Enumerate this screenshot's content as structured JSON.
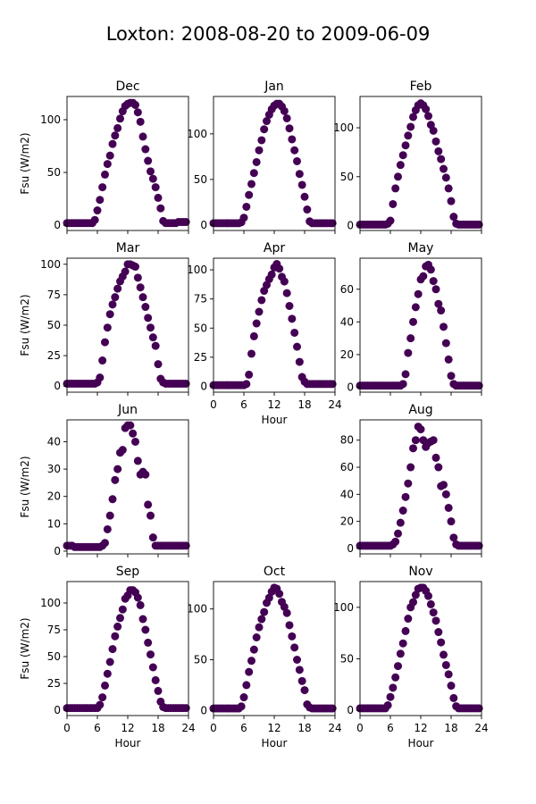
{
  "figure": {
    "title": "Loxton: 2008-08-20 to 2009-06-09",
    "marker_color": "#440154",
    "x_label": "Hour",
    "y_label": "Fsu (W/m2)",
    "x_ticks": [
      0,
      6,
      12,
      18,
      24
    ],
    "x_tick_labels": [
      "0",
      "6",
      "12",
      "18",
      "24"
    ]
  },
  "chart_data": [
    {
      "type": "scatter",
      "title": "Dec",
      "xlim": [
        0,
        24
      ],
      "ylim": [
        -5,
        122
      ],
      "yticks": [
        0,
        50,
        100
      ],
      "x": [
        0,
        0.5,
        1,
        1.5,
        2,
        2.5,
        3,
        3.5,
        4,
        4.5,
        5,
        5.5,
        6,
        6.5,
        7,
        7.5,
        8,
        8.5,
        9,
        9.5,
        10,
        10.5,
        11,
        11.5,
        12,
        12.5,
        13,
        13.5,
        14,
        14.5,
        15,
        15.5,
        16,
        16.5,
        17,
        17.5,
        18,
        18.5,
        19,
        19.5,
        20,
        20.5,
        21,
        21.5,
        22,
        22.5,
        23,
        23.5
      ],
      "y": [
        2,
        2,
        2,
        2,
        2,
        2,
        2,
        2,
        2,
        2,
        2,
        5,
        14,
        24,
        36,
        48,
        58,
        66,
        77,
        85,
        92,
        101,
        108,
        113,
        115,
        116,
        116,
        114,
        107,
        98,
        84,
        72,
        61,
        51,
        44,
        36,
        26,
        16,
        4,
        2,
        2,
        2,
        2,
        2,
        3,
        3,
        3,
        3
      ]
    },
    {
      "type": "scatter",
      "title": "Jan",
      "xlim": [
        0,
        24
      ],
      "ylim": [
        -6,
        141
      ],
      "yticks": [
        0,
        50,
        100
      ],
      "x": [
        0,
        0.5,
        1,
        1.5,
        2,
        2.5,
        3,
        3.5,
        4,
        4.5,
        5,
        5.5,
        6,
        6.5,
        7,
        7.5,
        8,
        8.5,
        9,
        9.5,
        10,
        10.5,
        11,
        11.5,
        12,
        12.5,
        13,
        13.5,
        14,
        14.5,
        15,
        15.5,
        16,
        16.5,
        17,
        17.5,
        18,
        18.5,
        19,
        19.5,
        20,
        20.5,
        21,
        21.5,
        22,
        22.5,
        23,
        23.5
      ],
      "y": [
        2,
        2,
        2,
        2,
        2,
        2,
        2,
        2,
        2,
        2,
        2,
        3,
        8,
        20,
        33,
        45,
        57,
        69,
        82,
        93,
        105,
        114,
        121,
        127,
        131,
        133,
        133,
        130,
        125,
        117,
        106,
        94,
        82,
        70,
        56,
        44,
        31,
        17,
        4,
        2,
        2,
        2,
        2,
        2,
        2,
        2,
        2,
        2
      ]
    },
    {
      "type": "scatter",
      "title": "Feb",
      "xlim": [
        0,
        24
      ],
      "ylim": [
        -5,
        132
      ],
      "yticks": [
        0,
        50,
        100
      ],
      "x": [
        0,
        0.5,
        1,
        1.5,
        2,
        2.5,
        3,
        3.5,
        4,
        4.5,
        5,
        5.5,
        6,
        6.5,
        7,
        7.5,
        8,
        8.5,
        9,
        9.5,
        10,
        10.5,
        11,
        11.5,
        12,
        12.5,
        13,
        13.5,
        14,
        14.5,
        15,
        15.5,
        16,
        16.5,
        17,
        17.5,
        18,
        18.5,
        19,
        19.5,
        20,
        20.5,
        21,
        21.5,
        22,
        22.5,
        23,
        23.5
      ],
      "y": [
        1,
        1,
        1,
        1,
        1,
        1,
        1,
        1,
        1,
        1,
        1,
        2,
        5,
        22,
        38,
        50,
        62,
        72,
        82,
        92,
        101,
        111,
        118,
        123,
        125,
        123,
        119,
        112,
        103,
        97,
        86,
        76,
        68,
        58,
        49,
        38,
        25,
        9,
        2,
        1,
        1,
        1,
        1,
        1,
        1,
        1,
        1,
        1
      ]
    },
    {
      "type": "scatter",
      "title": "Mar",
      "xlim": [
        0,
        24
      ],
      "ylim": [
        -5,
        105
      ],
      "yticks": [
        0,
        25,
        50,
        75,
        100
      ],
      "x": [
        0,
        0.5,
        1,
        1.5,
        2,
        2.5,
        3,
        3.5,
        4,
        4.5,
        5,
        5.5,
        6,
        6.5,
        7,
        7.5,
        8,
        8.5,
        9,
        9.5,
        10,
        10.5,
        11,
        11.5,
        12,
        12.5,
        13,
        13.5,
        14,
        14.5,
        15,
        15.5,
        16,
        16.5,
        17,
        17.5,
        18,
        18.5,
        19,
        19.5,
        20,
        20.5,
        21,
        21.5,
        22,
        22.5,
        23,
        23.5
      ],
      "y": [
        2,
        2,
        2,
        2,
        2,
        2,
        2,
        2,
        2,
        2,
        2,
        2,
        3,
        7,
        21,
        36,
        48,
        59,
        67,
        73,
        80,
        86,
        90,
        94,
        100,
        100,
        99,
        98,
        89,
        81,
        73,
        65,
        56,
        48,
        40,
        33,
        18,
        6,
        3,
        2,
        2,
        2,
        2,
        2,
        2,
        2,
        2,
        2
      ]
    },
    {
      "type": "scatter",
      "title": "Apr",
      "xlim": [
        0,
        24
      ],
      "ylim": [
        -5,
        110
      ],
      "yticks": [
        0,
        25,
        50,
        75,
        100
      ],
      "x": [
        0,
        0.5,
        1,
        1.5,
        2,
        2.5,
        3,
        3.5,
        4,
        4.5,
        5,
        5.5,
        6,
        6.5,
        7,
        7.5,
        8,
        8.5,
        9,
        9.5,
        10,
        10.5,
        11,
        11.5,
        12,
        12.5,
        13,
        13.5,
        14,
        14.5,
        15,
        15.5,
        16,
        16.5,
        17,
        17.5,
        18,
        18.5,
        19,
        19.5,
        20,
        20.5,
        21,
        21.5,
        22,
        22.5,
        23,
        23.5
      ],
      "y": [
        1,
        1,
        1,
        1,
        1,
        1,
        1,
        1,
        1,
        1,
        1,
        1,
        1,
        2,
        10,
        28,
        43,
        54,
        64,
        74,
        82,
        87,
        92,
        96,
        102,
        105,
        101,
        94,
        90,
        80,
        69,
        58,
        46,
        34,
        21,
        8,
        4,
        2,
        2,
        2,
        2,
        2,
        2,
        2,
        2,
        2,
        2,
        2
      ]
    },
    {
      "type": "scatter",
      "title": "May",
      "xlim": [
        0,
        24
      ],
      "ylim": [
        -3,
        79
      ],
      "yticks": [
        0,
        20,
        40,
        60
      ],
      "x": [
        0,
        0.5,
        1,
        1.5,
        2,
        2.5,
        3,
        3.5,
        4,
        4.5,
        5,
        5.5,
        6,
        6.5,
        7,
        7.5,
        8,
        8.5,
        9,
        9.5,
        10,
        10.5,
        11,
        11.5,
        12,
        12.5,
        13,
        13.5,
        14,
        14.5,
        15,
        15.5,
        16,
        16.5,
        17,
        17.5,
        18,
        18.5,
        19,
        19.5,
        20,
        20.5,
        21,
        21.5,
        22,
        22.5,
        23,
        23.5
      ],
      "y": [
        1,
        1,
        1,
        1,
        1,
        1,
        1,
        1,
        1,
        1,
        1,
        1,
        1,
        1,
        1,
        1,
        1,
        2,
        8,
        21,
        30,
        40,
        49,
        57,
        66,
        68,
        74,
        75,
        72,
        65,
        60,
        51,
        47,
        37,
        27,
        17,
        7,
        2,
        1,
        1,
        1,
        1,
        1,
        1,
        1,
        1,
        1,
        1
      ]
    },
    {
      "type": "scatter",
      "title": "Jun",
      "xlim": [
        0,
        24
      ],
      "ylim": [
        -1,
        48
      ],
      "yticks": [
        0,
        10,
        20,
        30,
        40
      ],
      "x": [
        0,
        0.5,
        1,
        1.5,
        2,
        2.5,
        3,
        3.5,
        4,
        4.5,
        5,
        5.5,
        6,
        6.5,
        7,
        7.5,
        8,
        8.5,
        9,
        9.5,
        10,
        10.5,
        11,
        11.5,
        12,
        12.5,
        13,
        13.5,
        14,
        14.5,
        15,
        15.5,
        16,
        16.5,
        17,
        17.5,
        18,
        18.5,
        19,
        19.5,
        20,
        20.5,
        21,
        21.5,
        22,
        22.5,
        23,
        23.5
      ],
      "y": [
        2,
        2,
        2,
        1.5,
        1.5,
        1.5,
        1.5,
        1.5,
        1.5,
        1.5,
        1.5,
        1.5,
        1.5,
        1.5,
        2,
        3,
        8,
        13,
        19,
        26,
        30,
        36,
        37,
        45,
        46,
        46,
        43,
        40,
        33,
        28,
        29,
        28,
        17,
        13,
        5,
        2,
        2,
        2,
        2,
        2,
        2,
        2,
        2,
        2,
        2,
        2,
        2,
        2
      ]
    },
    {
      "type": "scatter",
      "title": "Aug",
      "xlim": [
        0,
        24
      ],
      "ylim": [
        -4,
        95
      ],
      "yticks": [
        0,
        20,
        40,
        60,
        80
      ],
      "x": [
        0,
        0.5,
        1,
        1.5,
        2,
        2.5,
        3,
        3.5,
        4,
        4.5,
        5,
        5.5,
        6,
        6.5,
        7,
        7.5,
        8,
        8.5,
        9,
        9.5,
        10,
        10.5,
        11,
        11.5,
        12,
        12.5,
        13,
        13.5,
        14,
        14.5,
        15,
        15.5,
        16,
        16.5,
        17,
        17.5,
        18,
        18.5,
        19,
        19.5,
        20,
        20.5,
        21,
        21.5,
        22,
        22.5,
        23,
        23.5
      ],
      "y": [
        2,
        2,
        2,
        2,
        2,
        2,
        2,
        2,
        2,
        2,
        2,
        2,
        2,
        3,
        5,
        11,
        19,
        28,
        38,
        48,
        60,
        74,
        80,
        90,
        88,
        80,
        75,
        78,
        79,
        80,
        67,
        60,
        46,
        47,
        40,
        30,
        20,
        8,
        3,
        2,
        2,
        2,
        2,
        2,
        2,
        2,
        2,
        2
      ]
    },
    {
      "type": "scatter",
      "title": "Sep",
      "xlim": [
        0,
        24
      ],
      "ylim": [
        -5,
        120
      ],
      "yticks": [
        0,
        25,
        50,
        75,
        100
      ],
      "x": [
        0,
        0.5,
        1,
        1.5,
        2,
        2.5,
        3,
        3.5,
        4,
        4.5,
        5,
        5.5,
        6,
        6.5,
        7,
        7.5,
        8,
        8.5,
        9,
        9.5,
        10,
        10.5,
        11,
        11.5,
        12,
        12.5,
        13,
        13.5,
        14,
        14.5,
        15,
        15.5,
        16,
        16.5,
        17,
        17.5,
        18,
        18.5,
        19,
        19.5,
        20,
        20.5,
        21,
        21.5,
        22,
        22.5,
        23,
        23.5
      ],
      "y": [
        2,
        2,
        2,
        2,
        2,
        2,
        2,
        2,
        2,
        2,
        2,
        2,
        2,
        5,
        12,
        23,
        34,
        45,
        57,
        69,
        78,
        86,
        94,
        104,
        107,
        112,
        112,
        110,
        105,
        98,
        85,
        75,
        63,
        52,
        40,
        28,
        18,
        8,
        3,
        2,
        2,
        2,
        2,
        2,
        2,
        2,
        2,
        2
      ]
    },
    {
      "type": "scatter",
      "title": "Oct",
      "xlim": [
        0,
        24
      ],
      "ylim": [
        -5,
        127
      ],
      "yticks": [
        0,
        50,
        100
      ],
      "x": [
        0,
        0.5,
        1,
        1.5,
        2,
        2.5,
        3,
        3.5,
        4,
        4.5,
        5,
        5.5,
        6,
        6.5,
        7,
        7.5,
        8,
        8.5,
        9,
        9.5,
        10,
        10.5,
        11,
        11.5,
        12,
        12.5,
        13,
        13.5,
        14,
        14.5,
        15,
        15.5,
        16,
        16.5,
        17,
        17.5,
        18,
        18.5,
        19,
        19.5,
        20,
        20.5,
        21,
        21.5,
        22,
        22.5,
        23,
        23.5
      ],
      "y": [
        2,
        2,
        2,
        2,
        2,
        2,
        2,
        2,
        2,
        2,
        2,
        4,
        13,
        25,
        38,
        49,
        60,
        72,
        82,
        90,
        97,
        106,
        111,
        117,
        121,
        120,
        115,
        107,
        102,
        96,
        84,
        73,
        62,
        50,
        40,
        29,
        20,
        6,
        3,
        2,
        2,
        2,
        2,
        2,
        2,
        2,
        2,
        2
      ]
    },
    {
      "type": "scatter",
      "title": "Nov",
      "xlim": [
        0,
        24
      ],
      "ylim": [
        -5,
        125
      ],
      "yticks": [
        0,
        50,
        100
      ],
      "x": [
        0,
        0.5,
        1,
        1.5,
        2,
        2.5,
        3,
        3.5,
        4,
        4.5,
        5,
        5.5,
        6,
        6.5,
        7,
        7.5,
        8,
        8.5,
        9,
        9.5,
        10,
        10.5,
        11,
        11.5,
        12,
        12.5,
        13,
        13.5,
        14,
        14.5,
        15,
        15.5,
        16,
        16.5,
        17,
        17.5,
        18,
        18.5,
        19,
        19.5,
        20,
        20.5,
        21,
        21.5,
        22,
        22.5,
        23,
        23.5
      ],
      "y": [
        2,
        2,
        2,
        2,
        2,
        2,
        2,
        2,
        2,
        2,
        2,
        5,
        13,
        22,
        32,
        43,
        55,
        65,
        77,
        89,
        100,
        105,
        112,
        118,
        119,
        119,
        116,
        111,
        103,
        95,
        87,
        76,
        66,
        54,
        44,
        35,
        24,
        12,
        4,
        2,
        2,
        2,
        2,
        2,
        2,
        2,
        2,
        2
      ]
    }
  ]
}
